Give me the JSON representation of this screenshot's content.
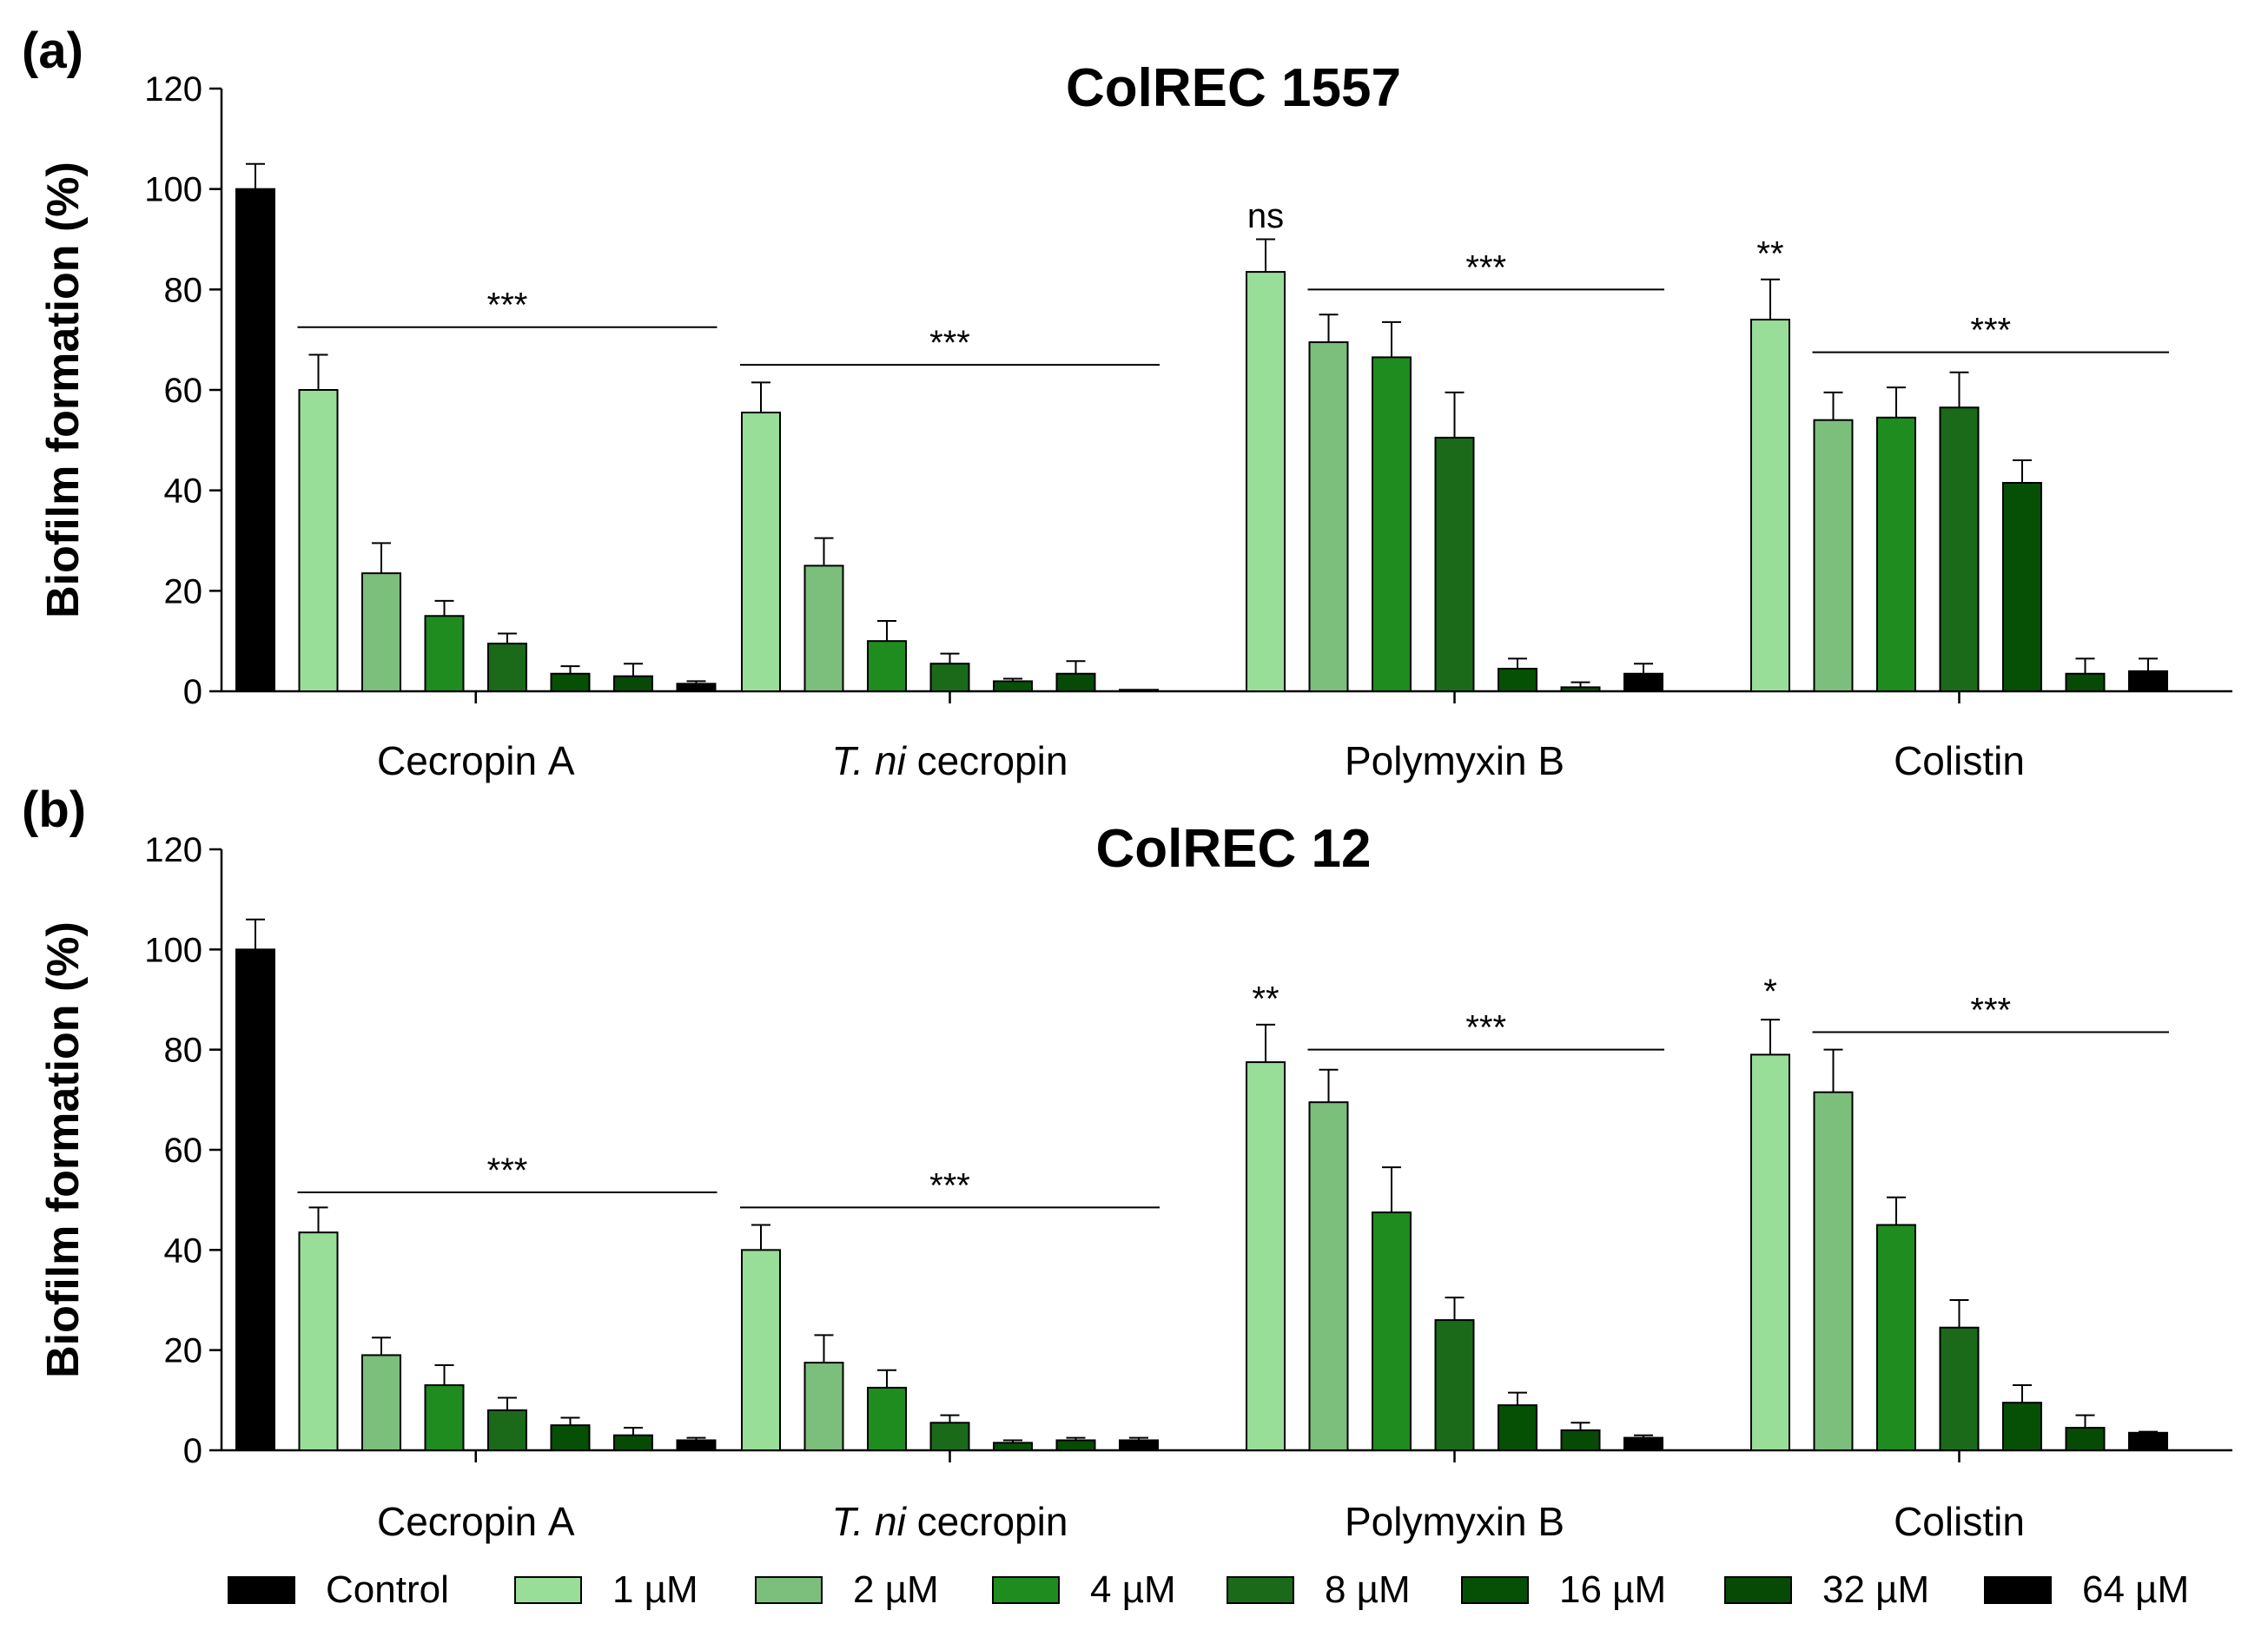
{
  "chart_data": [
    {
      "type": "bar",
      "panel_label": "(a)",
      "title": "ColREC 1557",
      "ylabel": "Biofilm formation (%)",
      "ylim": [
        0,
        120
      ],
      "yticks": [
        0,
        20,
        40,
        60,
        80,
        100,
        120
      ],
      "categories": [
        {
          "parts": [
            {
              "text": "Cecropin A",
              "italic": false
            }
          ]
        },
        {
          "parts": [
            {
              "text": "T. ni",
              "italic": true
            },
            {
              "text": " cecropin",
              "italic": false
            }
          ]
        },
        {
          "parts": [
            {
              "text": "Polymyxin B",
              "italic": false
            }
          ]
        },
        {
          "parts": [
            {
              "text": "Colistin",
              "italic": false
            }
          ]
        }
      ],
      "control": {
        "name": "Control",
        "value": 100,
        "error": 5
      },
      "series": [
        {
          "name": "1 µM",
          "values": [
            60,
            55.5,
            83.5,
            74
          ],
          "errors": [
            7,
            6,
            6.5,
            8
          ]
        },
        {
          "name": "2 µM",
          "values": [
            23.5,
            25,
            69.5,
            54
          ],
          "errors": [
            6,
            5.5,
            5.5,
            5.5
          ]
        },
        {
          "name": "4 µM",
          "values": [
            15,
            10,
            66.5,
            54.5
          ],
          "errors": [
            3,
            4,
            7,
            6
          ]
        },
        {
          "name": "8 µM",
          "values": [
            9.5,
            5.5,
            50.5,
            56.5
          ],
          "errors": [
            2,
            2,
            9,
            7
          ]
        },
        {
          "name": "16 µM",
          "values": [
            3.5,
            2,
            4.5,
            41.5
          ],
          "errors": [
            1.5,
            0.5,
            2,
            4.5
          ]
        },
        {
          "name": "32 µM",
          "values": [
            3,
            3.5,
            0.8,
            3.5
          ],
          "errors": [
            2.5,
            2.5,
            1,
            3
          ]
        },
        {
          "name": "64 µM",
          "values": [
            1.5,
            0.3,
            3.5,
            4
          ],
          "errors": [
            0.5,
            0,
            2,
            2.5
          ]
        }
      ],
      "annotations": [
        {
          "group": 0,
          "from": 0,
          "to": 6,
          "text": "***",
          "y": 72.5
        },
        {
          "group": 1,
          "from": 0,
          "to": 6,
          "text": "***",
          "y": 65
        },
        {
          "group": 2,
          "single": 0,
          "text": "ns",
          "y": 93
        },
        {
          "group": 2,
          "from": 1,
          "to": 6,
          "text": "***",
          "y": 80
        },
        {
          "group": 3,
          "single": 0,
          "text": "**",
          "y": 85.5
        },
        {
          "group": 3,
          "from": 1,
          "to": 6,
          "text": "***",
          "y": 67.5
        }
      ]
    },
    {
      "type": "bar",
      "panel_label": "(b)",
      "title": "ColREC 12",
      "ylabel": "Biofilm formation (%)",
      "ylim": [
        0,
        120
      ],
      "yticks": [
        0,
        20,
        40,
        60,
        80,
        100,
        120
      ],
      "categories": [
        {
          "parts": [
            {
              "text": "Cecropin A",
              "italic": false
            }
          ]
        },
        {
          "parts": [
            {
              "text": "T. ni",
              "italic": true
            },
            {
              "text": " cecropin",
              "italic": false
            }
          ]
        },
        {
          "parts": [
            {
              "text": "Polymyxin B",
              "italic": false
            }
          ]
        },
        {
          "parts": [
            {
              "text": "Colistin",
              "italic": false
            }
          ]
        }
      ],
      "control": {
        "name": "Control",
        "value": 100,
        "error": 6
      },
      "series": [
        {
          "name": "1 µM",
          "values": [
            43.5,
            40,
            77.5,
            79
          ],
          "errors": [
            5,
            5,
            7.5,
            7
          ]
        },
        {
          "name": "2 µM",
          "values": [
            19,
            17.5,
            69.5,
            71.5
          ],
          "errors": [
            3.5,
            5.5,
            6.5,
            8.5
          ]
        },
        {
          "name": "4 µM",
          "values": [
            13,
            12.5,
            47.5,
            45
          ],
          "errors": [
            4,
            3.5,
            9,
            5.5
          ]
        },
        {
          "name": "8 µM",
          "values": [
            8,
            5.5,
            26,
            24.5
          ],
          "errors": [
            2.5,
            1.5,
            4.5,
            5.5
          ]
        },
        {
          "name": "16 µM",
          "values": [
            5,
            1.5,
            9,
            9.5
          ],
          "errors": [
            1.5,
            0.5,
            2.5,
            3.5
          ]
        },
        {
          "name": "32 µM",
          "values": [
            3,
            2,
            4,
            4.5
          ],
          "errors": [
            1.5,
            0.5,
            1.5,
            2.5
          ]
        },
        {
          "name": "64 µM",
          "values": [
            2,
            2,
            2.5,
            3.5
          ],
          "errors": [
            0.5,
            0.5,
            0.5,
            0.2
          ]
        }
      ],
      "annotations": [
        {
          "group": 0,
          "from": 0,
          "to": 6,
          "text": "***",
          "y": 51.5
        },
        {
          "group": 1,
          "from": 0,
          "to": 6,
          "text": "***",
          "y": 48.5
        },
        {
          "group": 2,
          "single": 0,
          "text": "**",
          "y": 88.5
        },
        {
          "group": 2,
          "from": 1,
          "to": 6,
          "text": "***",
          "y": 80
        },
        {
          "group": 3,
          "single": 0,
          "text": "*",
          "y": 90
        },
        {
          "group": 3,
          "from": 1,
          "to": 6,
          "text": "***",
          "y": 83.5
        }
      ]
    }
  ],
  "legend": [
    {
      "label": "Control",
      "color": "#000000"
    },
    {
      "label": "1 µM",
      "color": "#98dd98"
    },
    {
      "label": "2 µM",
      "color": "#7cbe7c"
    },
    {
      "label": "4 µM",
      "color": "#1e8c1e"
    },
    {
      "label": "8 µM",
      "color": "#1a6a1a"
    },
    {
      "label": "16 µM",
      "color": "#065006"
    },
    {
      "label": "32 µM",
      "color": "#064a06"
    },
    {
      "label": "64 µM",
      "color": "#000000"
    }
  ],
  "colors": {
    "series": [
      "#98dd98",
      "#7cbe7c",
      "#1e8c1e",
      "#1a6a1a",
      "#065006",
      "#064a06",
      "#000000"
    ],
    "control": "#000000",
    "outline": "#000000"
  }
}
